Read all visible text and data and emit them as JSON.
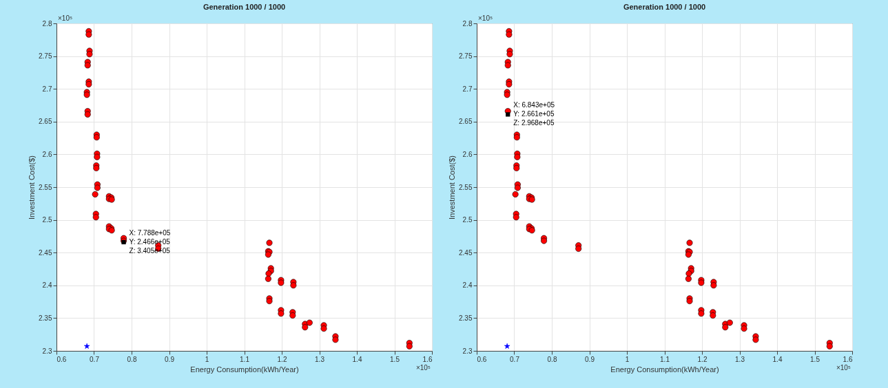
{
  "chart_data": [
    {
      "type": "scatter",
      "title": "Generation 1000 / 1000",
      "xlabel": "Energy Consumption(kWh/Year)",
      "ylabel": "Investment Cost($)",
      "xlim": [
        0.6,
        1.6
      ],
      "ylim": [
        2.3,
        2.8
      ],
      "xticks": [
        0.6,
        0.7,
        0.8,
        0.9,
        1,
        1.1,
        1.2,
        1.3,
        1.4,
        1.5,
        1.6
      ],
      "yticks": [
        2.3,
        2.35,
        2.4,
        2.45,
        2.5,
        2.55,
        2.6,
        2.65,
        2.7,
        2.75,
        2.8
      ],
      "grid": true,
      "marker": "circle",
      "series": [
        {
          "color": "#ff0000",
          "x": [
            0.686,
            0.686,
            0.688,
            0.688,
            0.683,
            0.683,
            0.686,
            0.686,
            0.681,
            0.681,
            0.683,
            0.683,
            0.707,
            0.707,
            0.708,
            0.708,
            0.706,
            0.706,
            0.709,
            0.709,
            0.703,
            0.74,
            0.746,
            0.74,
            0.747,
            0.705,
            0.705,
            0.74,
            0.746,
            0.74,
            0.747,
            0.779,
            0.779,
            0.871,
            0.871,
            1.167,
            1.164,
            1.167,
            1.164,
            1.171,
            1.171,
            1.165,
            1.164,
            1.198,
            1.198,
            1.231,
            1.231,
            1.167,
            1.167,
            1.198,
            1.198,
            1.229,
            1.229,
            1.262,
            1.262,
            1.274,
            1.312,
            1.312,
            1.343,
            1.343,
            1.54,
            1.54
          ],
          "values": [
            2.788,
            2.783,
            2.758,
            2.753,
            2.741,
            2.736,
            2.711,
            2.707,
            2.695,
            2.691,
            2.666,
            2.661,
            2.63,
            2.626,
            2.601,
            2.596,
            2.583,
            2.579,
            2.554,
            2.549,
            2.539,
            2.536,
            2.534,
            2.532,
            2.531,
            2.509,
            2.504,
            2.49,
            2.487,
            2.486,
            2.484,
            2.472,
            2.468,
            2.461,
            2.456,
            2.465,
            2.452,
            2.451,
            2.447,
            2.426,
            2.422,
            2.418,
            2.41,
            2.408,
            2.404,
            2.405,
            2.4,
            2.38,
            2.376,
            2.362,
            2.357,
            2.359,
            2.354,
            2.341,
            2.336,
            2.343,
            2.339,
            2.334,
            2.322,
            2.317,
            2.312,
            2.307
          ]
        },
        {
          "color": "#0000ff",
          "marker": "star",
          "x": [
            0.681
          ],
          "values": [
            2.307
          ]
        }
      ],
      "annotations": [
        "×10⁵",
        "×10⁵",
        {
          "text": "X: 7.788e+05\nY: 2.466e+05\nZ: 3.405e+05",
          "x": 0.779,
          "y": 2.466
        }
      ]
    },
    {
      "type": "scatter",
      "title": "Generation 1000 / 1000",
      "xlabel": "Energy Consumption(kWh/Year)",
      "ylabel": "Investment Cost($)",
      "xlim": [
        0.6,
        1.6
      ],
      "ylim": [
        2.3,
        2.8
      ],
      "xticks": [
        0.6,
        0.7,
        0.8,
        0.9,
        1,
        1.1,
        1.2,
        1.3,
        1.4,
        1.5,
        1.6
      ],
      "yticks": [
        2.3,
        2.35,
        2.4,
        2.45,
        2.5,
        2.55,
        2.6,
        2.65,
        2.7,
        2.75,
        2.8
      ],
      "grid": true,
      "marker": "circle",
      "series": [
        {
          "color": "#ff0000",
          "x": [
            0.686,
            0.686,
            0.688,
            0.688,
            0.683,
            0.683,
            0.686,
            0.686,
            0.681,
            0.681,
            0.683,
            0.707,
            0.707,
            0.708,
            0.708,
            0.706,
            0.706,
            0.709,
            0.709,
            0.703,
            0.74,
            0.746,
            0.74,
            0.747,
            0.705,
            0.705,
            0.74,
            0.746,
            0.74,
            0.747,
            0.779,
            0.779,
            0.871,
            0.871,
            1.167,
            1.164,
            1.167,
            1.164,
            1.171,
            1.171,
            1.165,
            1.164,
            1.198,
            1.198,
            1.231,
            1.231,
            1.167,
            1.167,
            1.198,
            1.198,
            1.229,
            1.229,
            1.262,
            1.262,
            1.274,
            1.312,
            1.312,
            1.343,
            1.343,
            1.54,
            1.54
          ],
          "values": [
            2.788,
            2.783,
            2.758,
            2.753,
            2.741,
            2.736,
            2.711,
            2.707,
            2.695,
            2.691,
            2.666,
            2.63,
            2.626,
            2.601,
            2.596,
            2.583,
            2.579,
            2.554,
            2.549,
            2.539,
            2.536,
            2.534,
            2.532,
            2.531,
            2.509,
            2.504,
            2.49,
            2.487,
            2.486,
            2.484,
            2.472,
            2.468,
            2.461,
            2.456,
            2.465,
            2.452,
            2.451,
            2.447,
            2.426,
            2.422,
            2.418,
            2.41,
            2.408,
            2.404,
            2.405,
            2.4,
            2.38,
            2.376,
            2.362,
            2.357,
            2.359,
            2.354,
            2.341,
            2.336,
            2.343,
            2.339,
            2.334,
            2.322,
            2.317,
            2.312,
            2.307
          ]
        },
        {
          "color": "#0000ff",
          "marker": "star",
          "x": [
            0.681
          ],
          "values": [
            2.307
          ]
        }
      ],
      "annotations": [
        "×10⁵",
        "×10⁵",
        {
          "text": "X: 6.843e+05\nY: 2.661e+05\nZ: 2.968e+05",
          "x": 0.683,
          "y": 2.661
        }
      ]
    }
  ]
}
